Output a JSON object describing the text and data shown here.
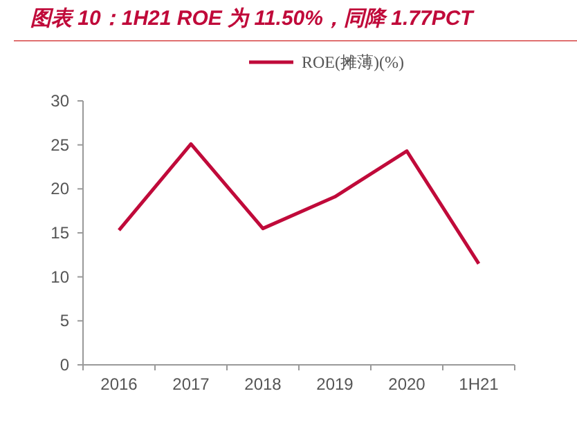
{
  "chart_data": {
    "type": "line",
    "title": "图表 10：1H21 ROE 为 11.50%，同降 1.77PCT",
    "categories": [
      "2016",
      "2017",
      "2018",
      "2019",
      "2020",
      "1H21"
    ],
    "series": [
      {
        "name": "ROE(摊薄)(%)",
        "color": "#c00a3a",
        "values": [
          15.3,
          25.1,
          15.5,
          19.1,
          24.3,
          11.5
        ]
      }
    ],
    "ylim": [
      0,
      30
    ],
    "yticks": [
      0,
      5,
      10,
      15,
      20,
      25,
      30
    ],
    "legend": "top",
    "grid": false,
    "marker": "none",
    "line_style": "solid"
  }
}
